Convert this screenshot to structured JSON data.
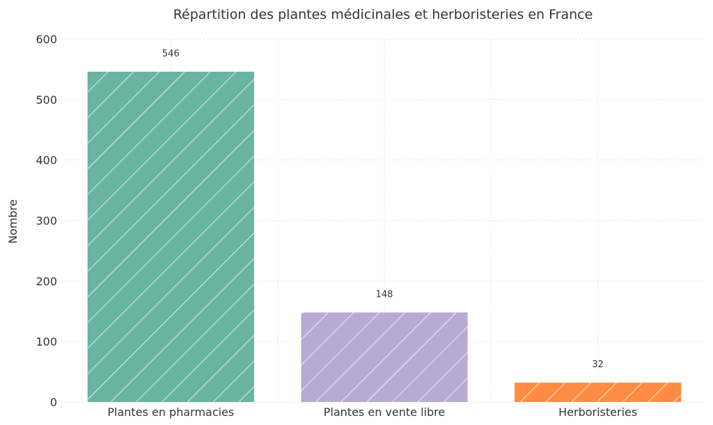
{
  "chart_data": {
    "type": "bar",
    "title": "Répartition des plantes médicinales et herboristeries en France",
    "xlabel": "",
    "ylabel": "Nombre",
    "categories": [
      "Plantes en pharmacies",
      "Plantes en vente libre",
      "Herboristeries"
    ],
    "values": [
      546,
      148,
      32
    ],
    "data_labels": [
      "546",
      "148",
      "32"
    ],
    "ylim": [
      0,
      600
    ],
    "yticks": [
      0,
      100,
      200,
      300,
      400,
      500,
      600
    ],
    "ytick_labels": [
      "0",
      "100",
      "200",
      "300",
      "400",
      "500",
      "600"
    ],
    "colors": [
      "#69b3a2",
      "#b9aad3",
      "#ff8c42"
    ],
    "hatch": "diagonal",
    "grid": true,
    "legend": false
  }
}
